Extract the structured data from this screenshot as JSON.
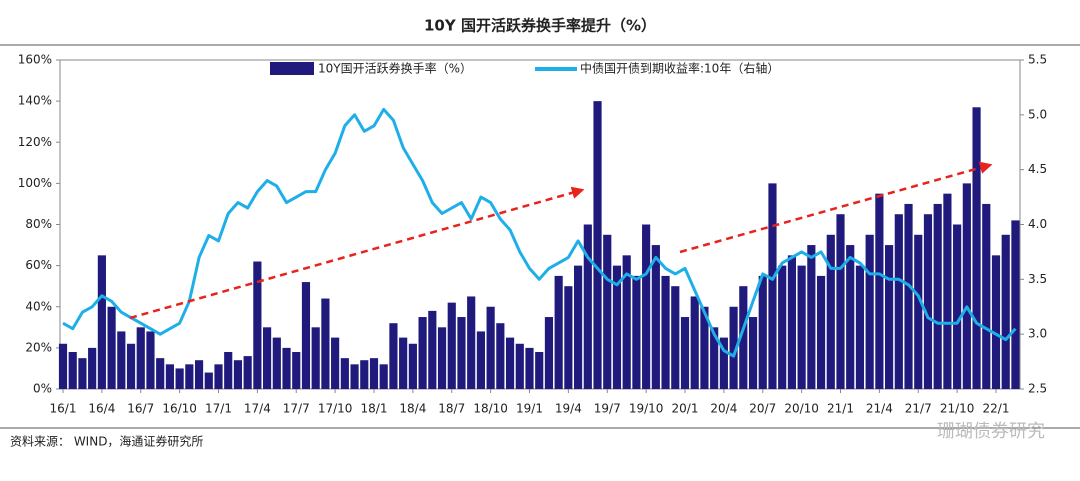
{
  "chart_data": {
    "type": "combo",
    "title": "10Y 国开活跃券换手率提升（%）",
    "source": "资料来源：  WIND，海通证券研究所",
    "watermark": "珊瑚债券研究",
    "categories": [
      "16/1",
      null,
      null,
      null,
      "16/4",
      null,
      null,
      null,
      "16/7",
      null,
      null,
      null,
      "16/10",
      null,
      null,
      null,
      "17/1",
      null,
      null,
      null,
      "17/4",
      null,
      null,
      null,
      "17/7",
      null,
      null,
      null,
      "17/10",
      null,
      null,
      null,
      "18/1",
      null,
      null,
      null,
      "18/4",
      null,
      null,
      null,
      "18/7",
      null,
      null,
      null,
      "18/10",
      null,
      null,
      null,
      "19/1",
      null,
      null,
      null,
      "19/4",
      null,
      null,
      null,
      "19/7",
      null,
      null,
      null,
      "19/10",
      null,
      null,
      null,
      "20/1",
      null,
      null,
      null,
      "20/4",
      null,
      null,
      null,
      "20/7",
      null,
      null,
      null,
      "20/10",
      null,
      null,
      null,
      "21/1",
      null,
      null,
      null,
      "21/4",
      null,
      null,
      null,
      "21/7",
      null,
      null,
      null,
      "21/10",
      null,
      null,
      null,
      "22/1",
      null,
      null
    ],
    "series": [
      {
        "name": "10Y国开活跃券换手率（%）",
        "type": "bar",
        "color": "#201a7c",
        "values": [
          22,
          18,
          15,
          20,
          65,
          40,
          28,
          22,
          30,
          28,
          15,
          12,
          10,
          12,
          14,
          8,
          12,
          18,
          14,
          16,
          62,
          30,
          25,
          20,
          18,
          52,
          30,
          44,
          25,
          15,
          12,
          14,
          15,
          12,
          32,
          25,
          22,
          35,
          38,
          30,
          42,
          35,
          45,
          28,
          40,
          32,
          25,
          22,
          20,
          18,
          35,
          55,
          50,
          60,
          80,
          140,
          75,
          60,
          65,
          55,
          80,
          70,
          55,
          50,
          35,
          45,
          40,
          30,
          25,
          40,
          50,
          35,
          55,
          100,
          60,
          65,
          60,
          70,
          55,
          75,
          85,
          70,
          60,
          75,
          95,
          70,
          85,
          90,
          75,
          85,
          90,
          95,
          80,
          100,
          137,
          90,
          65,
          75,
          82
        ]
      },
      {
        "name": "中债国开债到期收益率:10年（右轴）",
        "type": "line",
        "axis": "y2",
        "color": "#1eaee8",
        "values": [
          3.1,
          3.05,
          3.2,
          3.25,
          3.35,
          3.3,
          3.2,
          3.15,
          3.1,
          3.05,
          3.0,
          3.05,
          3.1,
          3.3,
          3.7,
          3.9,
          3.85,
          4.1,
          4.2,
          4.15,
          4.3,
          4.4,
          4.35,
          4.2,
          4.25,
          4.3,
          4.3,
          4.5,
          4.65,
          4.9,
          5.0,
          4.85,
          4.9,
          5.05,
          4.95,
          4.7,
          4.55,
          4.4,
          4.2,
          4.1,
          4.15,
          4.2,
          4.05,
          4.25,
          4.2,
          4.05,
          3.95,
          3.75,
          3.6,
          3.5,
          3.6,
          3.65,
          3.7,
          3.85,
          3.7,
          3.6,
          3.5,
          3.45,
          3.55,
          3.5,
          3.55,
          3.7,
          3.6,
          3.55,
          3.6,
          3.4,
          3.2,
          3.0,
          2.85,
          2.8,
          3.05,
          3.3,
          3.55,
          3.5,
          3.65,
          3.7,
          3.75,
          3.7,
          3.75,
          3.6,
          3.6,
          3.7,
          3.65,
          3.55,
          3.55,
          3.5,
          3.5,
          3.45,
          3.35,
          3.15,
          3.1,
          3.1,
          3.1,
          3.25,
          3.1,
          3.05,
          3.0,
          2.95,
          3.05
        ]
      }
    ],
    "ylim": [
      0,
      160
    ],
    "yticks": [
      {
        "value": 0,
        "label": "0%"
      },
      {
        "value": 20,
        "label": "20%"
      },
      {
        "value": 40,
        "label": "40%"
      },
      {
        "value": 60,
        "label": "60%"
      },
      {
        "value": 80,
        "label": "80%"
      },
      {
        "value": 100,
        "label": "100%"
      },
      {
        "value": 120,
        "label": "120%"
      },
      {
        "value": 140,
        "label": "140%"
      },
      {
        "value": 160,
        "label": "160%"
      }
    ],
    "y2lim": [
      2.5,
      5.5
    ],
    "y2ticks": [
      {
        "value": 2.5,
        "label": "2.5"
      },
      {
        "value": 3.0,
        "label": "3.0"
      },
      {
        "value": 3.5,
        "label": "3.5"
      },
      {
        "value": 4.0,
        "label": "4.0"
      },
      {
        "value": 4.5,
        "label": "4.5"
      },
      {
        "value": 5.0,
        "label": "5.0"
      },
      {
        "value": 5.5,
        "label": "5.5"
      }
    ]
  }
}
